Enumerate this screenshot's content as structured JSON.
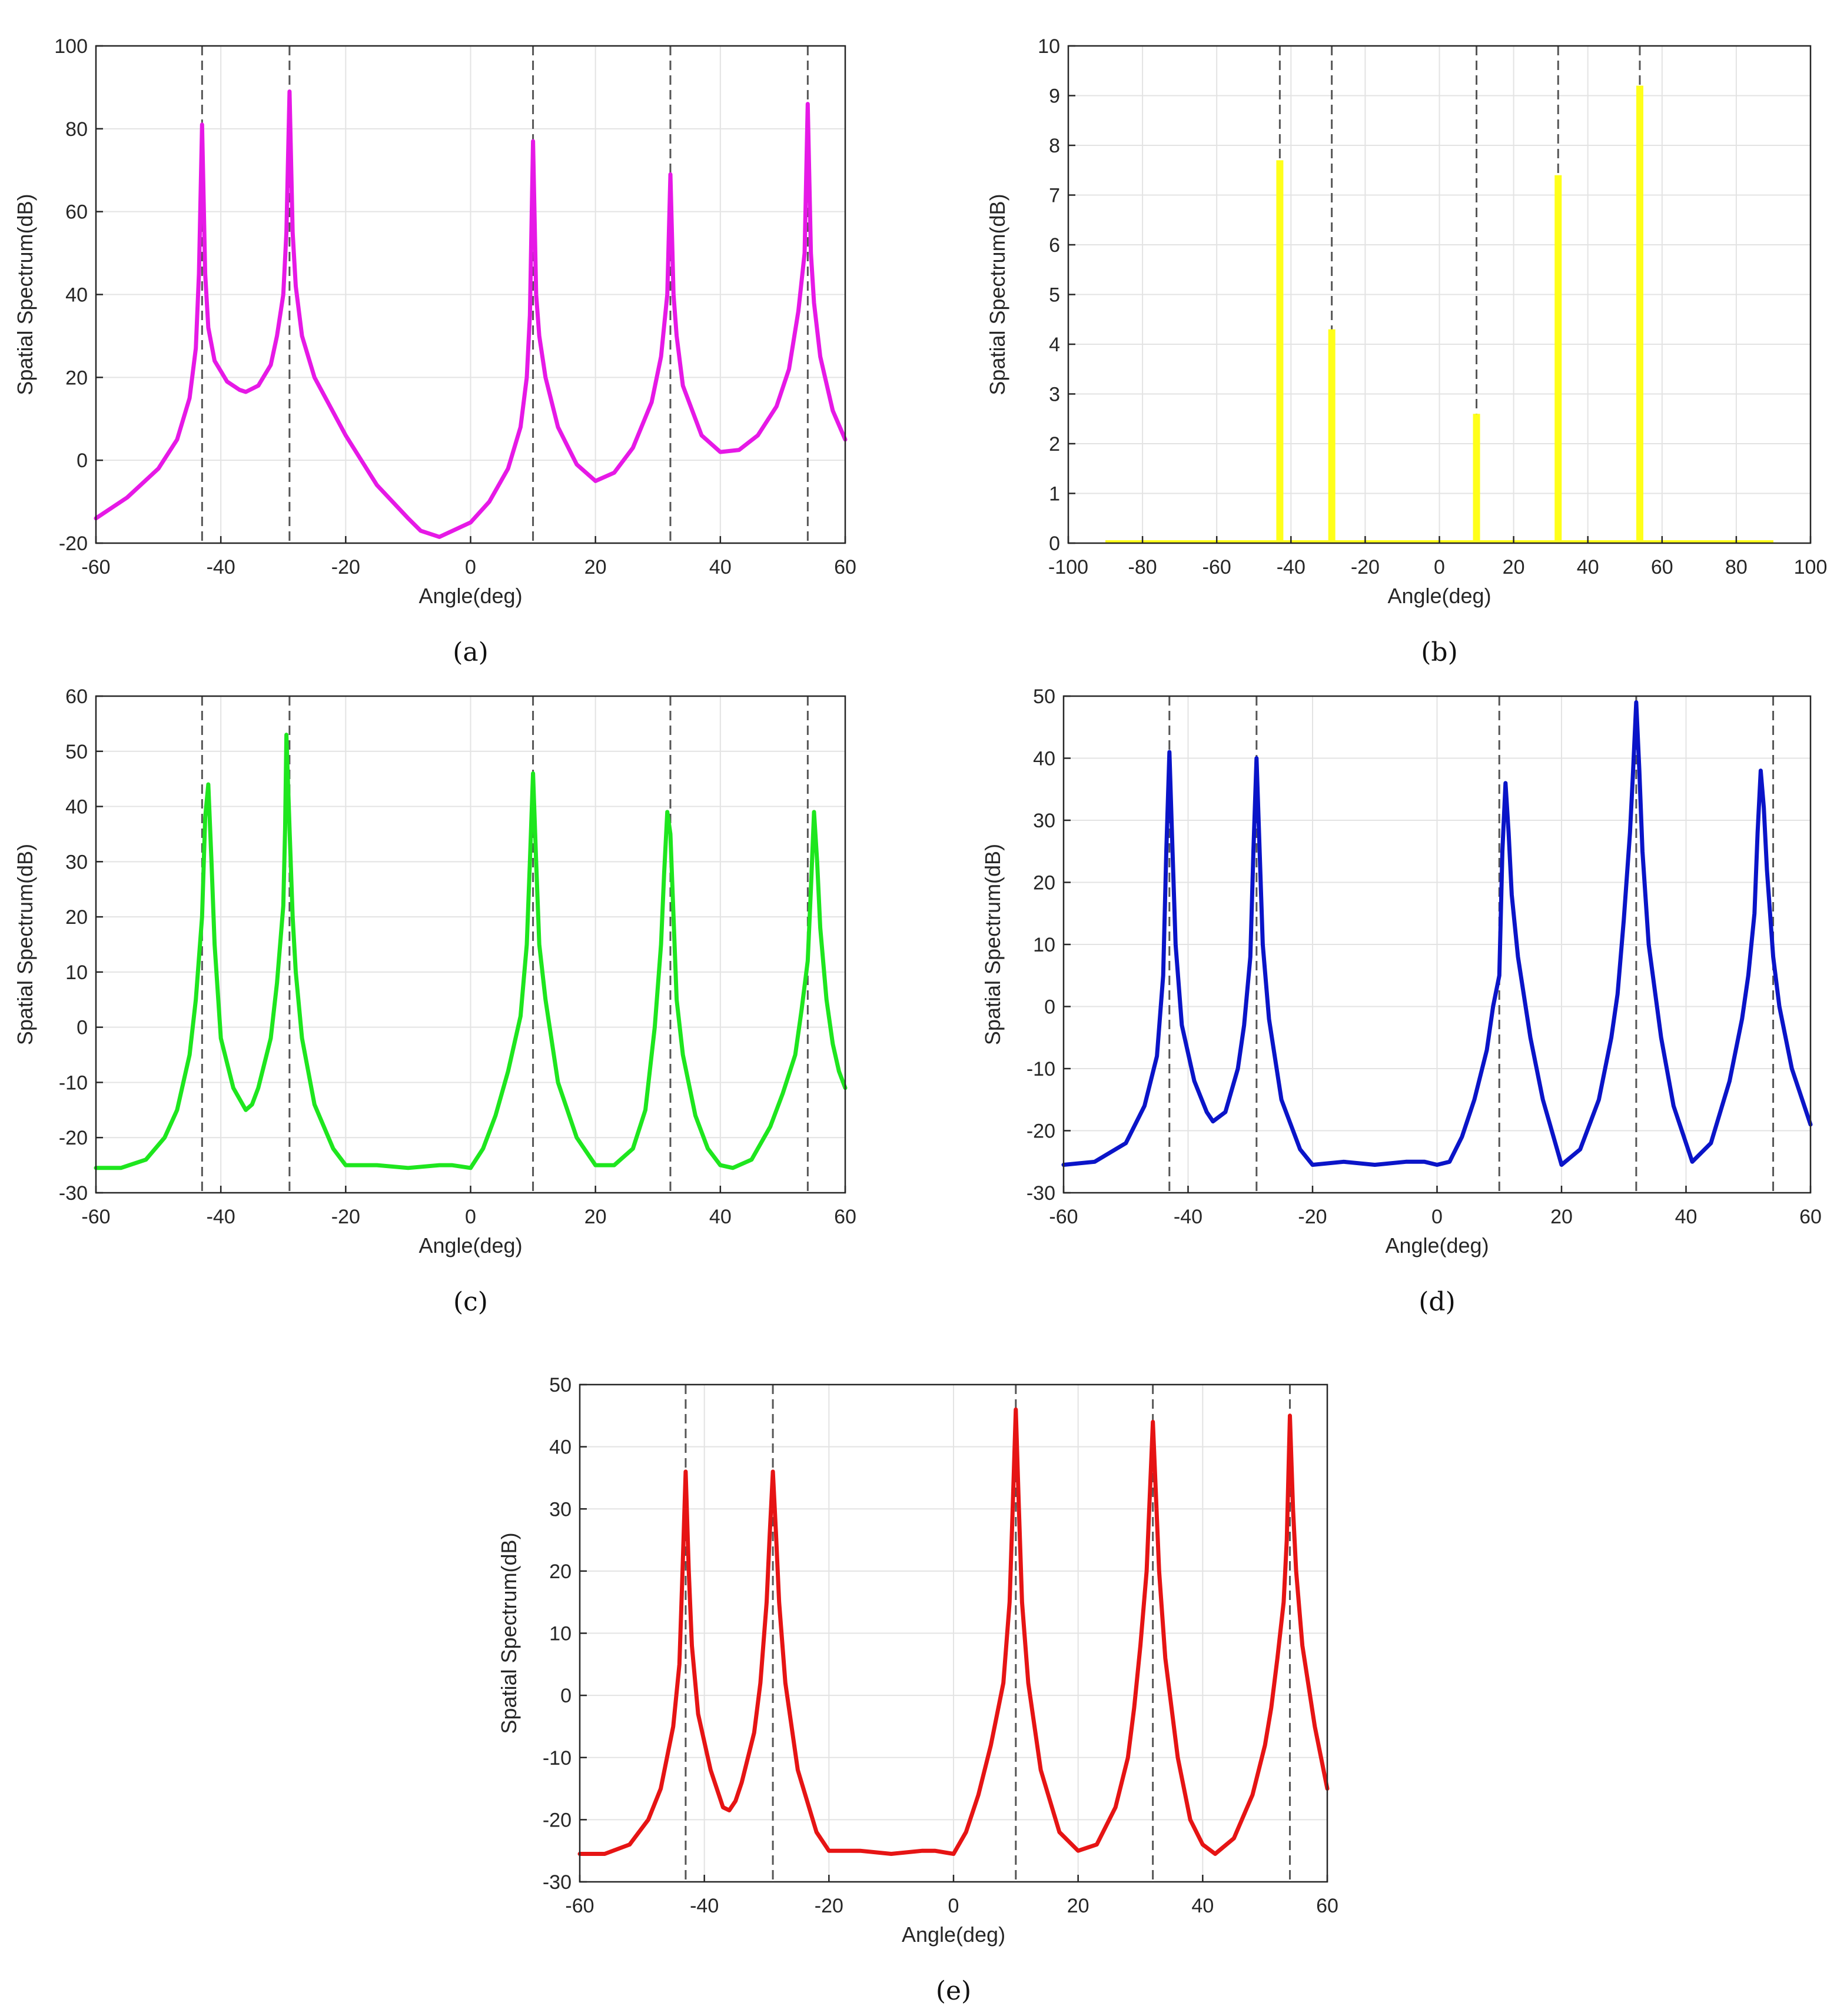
{
  "figure": {
    "reference_lines": [
      -43,
      -29,
      10,
      32,
      54
    ],
    "charts": [
      {
        "id": "a",
        "type": "line",
        "caption": "(a)",
        "xlabel": "Angle(deg)",
        "ylabel": "Spatial Spectrum(dB)",
        "color": "#e619e6",
        "xlim": [
          -60,
          60
        ],
        "ylim": [
          -20,
          100
        ],
        "xticks": [
          -60,
          -40,
          -20,
          0,
          20,
          40,
          60
        ],
        "yticks": [
          -20,
          0,
          20,
          40,
          60,
          80,
          100
        ],
        "x": [
          -60,
          -55,
          -50,
          -47,
          -45,
          -44,
          -43.5,
          -43,
          -42.5,
          -42,
          -41,
          -39,
          -37,
          -36,
          -34,
          -32,
          -31,
          -30,
          -29.5,
          -29,
          -28.5,
          -28,
          -27,
          -25,
          -20,
          -15,
          -10,
          -8,
          -5,
          0,
          3,
          6,
          8,
          9,
          9.5,
          10,
          10.5,
          11,
          12,
          14,
          17,
          20,
          23,
          26,
          29,
          30.5,
          31.5,
          32,
          32.5,
          33,
          34,
          37,
          40,
          43,
          46,
          49,
          51,
          52.5,
          53.5,
          54,
          54.5,
          55,
          56,
          58,
          60
        ],
        "values": [
          -14,
          -9,
          -2,
          5,
          15,
          27,
          45,
          81,
          45,
          32,
          24,
          19,
          17,
          16.5,
          18,
          23,
          30,
          40,
          55,
          89,
          55,
          42,
          30,
          20,
          6,
          -6,
          -14,
          -17,
          -18.5,
          -15,
          -10,
          -2,
          8,
          20,
          35,
          77,
          40,
          30,
          20,
          8,
          -1,
          -5,
          -3,
          3,
          14,
          25,
          40,
          69,
          40,
          30,
          18,
          6,
          2,
          2.5,
          6,
          13,
          22,
          36,
          50,
          86,
          50,
          38,
          25,
          12,
          5
        ]
      },
      {
        "id": "b",
        "type": "bar",
        "caption": "(b)",
        "xlabel": "Angle(deg)",
        "ylabel": "Spatial Spectrum(dB)",
        "color": "#ffff1a",
        "xlim": [
          -100,
          100
        ],
        "ylim": [
          0,
          10
        ],
        "xticks": [
          -100,
          -80,
          -60,
          -40,
          -20,
          0,
          20,
          40,
          60,
          80,
          100
        ],
        "yticks": [
          0,
          1,
          2,
          3,
          4,
          5,
          6,
          7,
          8,
          9,
          10
        ],
        "baseline_x": [
          -90,
          90
        ],
        "x": [
          -43,
          -29,
          10,
          32,
          54
        ],
        "values": [
          7.7,
          4.3,
          2.6,
          7.4,
          9.2
        ]
      },
      {
        "id": "c",
        "type": "line",
        "caption": "(c)",
        "xlabel": "Angle(deg)",
        "ylabel": "Spatial Spectrum(dB)",
        "color": "#1ee61e",
        "xlim": [
          -60,
          60
        ],
        "ylim": [
          -30,
          60
        ],
        "xticks": [
          -60,
          -40,
          -20,
          0,
          20,
          40,
          60
        ],
        "yticks": [
          -30,
          -20,
          -10,
          0,
          10,
          20,
          30,
          40,
          50,
          60
        ],
        "x": [
          -60,
          -56,
          -52,
          -49,
          -47,
          -45,
          -44,
          -43,
          -42.5,
          -42,
          -41.5,
          -41,
          -40,
          -38,
          -36,
          -35,
          -34,
          -32,
          -31,
          -30,
          -29.7,
          -29.5,
          -29,
          -28.5,
          -28,
          -27,
          -25,
          -22,
          -20,
          -18,
          -15,
          -10,
          -5,
          -3,
          0,
          2,
          4,
          6,
          8,
          9,
          9.5,
          10,
          10.5,
          11,
          12,
          14,
          17,
          20,
          23,
          26,
          28,
          29.5,
          30.5,
          31,
          31.5,
          32,
          32.5,
          33,
          34,
          36,
          38,
          40,
          42,
          45,
          48,
          50,
          52,
          53,
          54,
          54.5,
          55,
          55.5,
          56,
          57,
          58,
          59,
          60
        ],
        "values": [
          -25.5,
          -25.5,
          -24,
          -20,
          -15,
          -5,
          5,
          20,
          38,
          44,
          30,
          15,
          -2,
          -11,
          -15,
          -14,
          -11,
          -2,
          8,
          22,
          36,
          53,
          36,
          20,
          10,
          -2,
          -14,
          -22,
          -25,
          -25,
          -25,
          -25.5,
          -25,
          -25,
          -25.5,
          -22,
          -16,
          -8,
          2,
          15,
          30,
          46,
          30,
          15,
          5,
          -10,
          -20,
          -25,
          -25,
          -22,
          -15,
          0,
          15,
          28,
          39,
          35,
          20,
          5,
          -5,
          -16,
          -22,
          -25,
          -25.5,
          -24,
          -18,
          -12,
          -5,
          3,
          12,
          25,
          39,
          30,
          18,
          5,
          -3,
          -8,
          -11
        ]
      },
      {
        "id": "d",
        "type": "line",
        "caption": "(d)",
        "xlabel": "Angle(deg)",
        "ylabel": "Spatial Spectrum(dB)",
        "color": "#0a14c8",
        "xlim": [
          -60,
          60
        ],
        "ylim": [
          -30,
          50
        ],
        "xticks": [
          -60,
          -40,
          -20,
          0,
          20,
          40,
          60
        ],
        "yticks": [
          -30,
          -20,
          -10,
          0,
          10,
          20,
          30,
          40,
          50
        ],
        "x": [
          -60,
          -55,
          -50,
          -47,
          -45,
          -44,
          -43.5,
          -43,
          -42.5,
          -42,
          -41,
          -39,
          -37,
          -36,
          -34,
          -32,
          -31,
          -30,
          -29.5,
          -29,
          -28.5,
          -28,
          -27,
          -25,
          -22,
          -20,
          -15,
          -10,
          -5,
          -2,
          0,
          2,
          4,
          6,
          8,
          9,
          10,
          10.5,
          11,
          11.5,
          12,
          13,
          15,
          17,
          20,
          23,
          26,
          28,
          29,
          30,
          31,
          31.5,
          32,
          32.5,
          33,
          34,
          36,
          38,
          41,
          44,
          47,
          49,
          50,
          51,
          51.5,
          52,
          52.5,
          53,
          54,
          55,
          57,
          60
        ],
        "values": [
          -25.5,
          -25,
          -22,
          -16,
          -8,
          5,
          25,
          41,
          25,
          10,
          -3,
          -12,
          -17,
          -18.5,
          -17,
          -10,
          -3,
          8,
          25,
          40,
          25,
          10,
          -2,
          -15,
          -23,
          -25.5,
          -25,
          -25.5,
          -25,
          -25,
          -25.5,
          -25,
          -21,
          -15,
          -7,
          0,
          5,
          25,
          36,
          28,
          18,
          8,
          -5,
          -15,
          -25.5,
          -23,
          -15,
          -5,
          2,
          14,
          28,
          38,
          49,
          38,
          25,
          10,
          -5,
          -16,
          -25,
          -22,
          -12,
          -2,
          5,
          15,
          28,
          38,
          32,
          22,
          8,
          0,
          -10,
          -19
        ]
      },
      {
        "id": "e",
        "type": "line",
        "caption": "(e)",
        "xlabel": "Angle(deg)",
        "ylabel": "Spatial Spectrum(dB)",
        "color": "#e61414",
        "xlim": [
          -60,
          60
        ],
        "ylim": [
          -30,
          50
        ],
        "xticks": [
          -60,
          -40,
          -20,
          0,
          20,
          40,
          60
        ],
        "yticks": [
          -30,
          -20,
          -10,
          0,
          10,
          20,
          30,
          40,
          50
        ],
        "x": [
          -60,
          -56,
          -52,
          -49,
          -47,
          -45,
          -44,
          -43.5,
          -43,
          -42.5,
          -42,
          -41,
          -39,
          -37,
          -36,
          -35,
          -34,
          -32,
          -31,
          -30,
          -29.5,
          -29,
          -28.5,
          -28,
          -27,
          -25,
          -22,
          -20,
          -15,
          -10,
          -5,
          -3,
          0,
          2,
          4,
          6,
          8,
          9,
          9.5,
          10,
          10.5,
          11,
          12,
          14,
          17,
          20,
          23,
          26,
          28,
          29,
          30,
          31,
          31.5,
          32,
          32.5,
          33,
          34,
          36,
          38,
          40,
          42,
          45,
          48,
          50,
          51,
          52,
          53,
          53.5,
          54,
          54.5,
          55,
          56,
          58,
          60
        ],
        "values": [
          -25.5,
          -25.5,
          -24,
          -20,
          -15,
          -5,
          5,
          20,
          36,
          20,
          8,
          -3,
          -12,
          -18,
          -18.5,
          -17,
          -14,
          -6,
          2,
          15,
          26,
          36,
          26,
          15,
          2,
          -12,
          -22,
          -25,
          -25,
          -25.5,
          -25,
          -25,
          -25.5,
          -22,
          -16,
          -8,
          2,
          15,
          30,
          46,
          30,
          15,
          2,
          -12,
          -22,
          -25,
          -24,
          -18,
          -10,
          -2,
          8,
          20,
          32,
          44,
          32,
          20,
          6,
          -10,
          -20,
          -24,
          -25.5,
          -23,
          -16,
          -8,
          -2,
          6,
          15,
          25,
          45,
          30,
          20,
          8,
          -5,
          -15
        ]
      }
    ]
  }
}
